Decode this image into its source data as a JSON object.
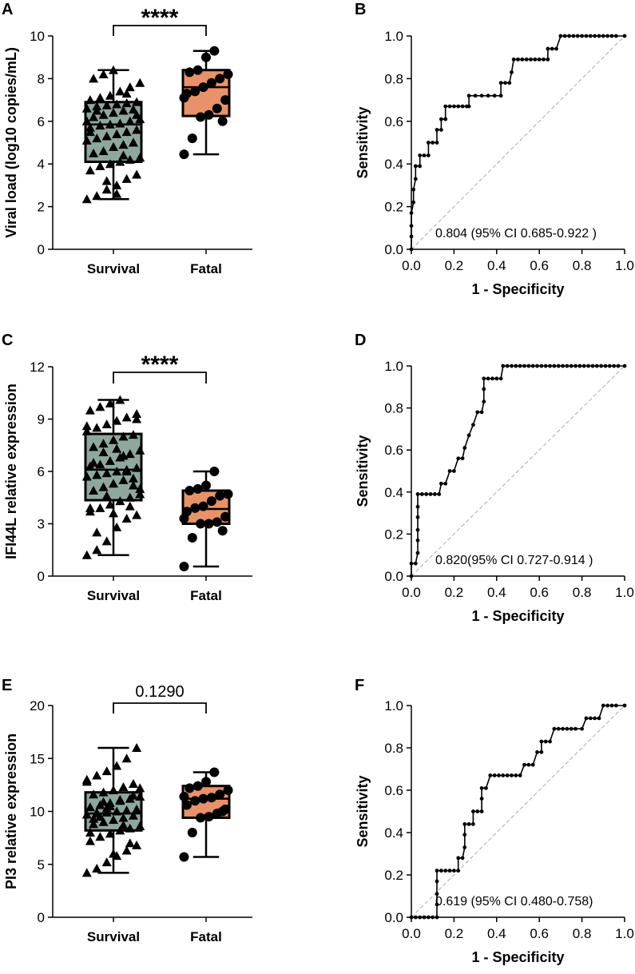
{
  "colors": {
    "survival_fill": "#8fa89e",
    "fatal_fill": "#e8926a",
    "line": "#000000",
    "diag": "#aaaaaa"
  },
  "chart_data": [
    {
      "panel": "A",
      "type": "box",
      "ylabel": "Viral load (log10 copies/mL)",
      "ylim": [
        0,
        10
      ],
      "yticks": [
        0,
        2,
        4,
        6,
        8,
        10
      ],
      "categories": [
        "Survival",
        "Fatal"
      ],
      "significance": "****",
      "boxes": [
        {
          "name": "Survival",
          "min": 2.35,
          "q1": 4.1,
          "median": 5.85,
          "q3": 6.9,
          "max": 8.4,
          "marker": "triangle"
        },
        {
          "name": "Fatal",
          "min": 4.45,
          "q1": 6.25,
          "median": 7.6,
          "q3": 8.4,
          "max": 9.3,
          "marker": "circle"
        }
      ],
      "points": [
        [
          2.35,
          2.5,
          2.8,
          3.0,
          3.3,
          3.5,
          3.7,
          3.9,
          4.0,
          4.1,
          4.2,
          4.3,
          4.5,
          4.6,
          4.8,
          4.9,
          5.0,
          5.1,
          5.2,
          5.3,
          5.4,
          5.5,
          5.6,
          5.7,
          5.8,
          5.85,
          5.9,
          6.0,
          6.1,
          6.2,
          6.3,
          6.4,
          6.5,
          6.55,
          6.6,
          6.7,
          6.75,
          6.8,
          6.85,
          6.9,
          7.0,
          7.1,
          7.2,
          7.4,
          7.6,
          7.8,
          8.0,
          8.2,
          8.4,
          4.4,
          5.0,
          6.0,
          6.5,
          3.2,
          2.6,
          7.3,
          6.3,
          5.5
        ],
        [
          4.45,
          5.2,
          6.2,
          6.3,
          6.6,
          7.0,
          7.3,
          7.4,
          7.6,
          7.8,
          8.0,
          8.2,
          8.3,
          8.4,
          9.0,
          9.3,
          6.0,
          7.1
        ]
      ]
    },
    {
      "panel": "B",
      "type": "roc",
      "xlabel": "1 - Specificity",
      "ylabel": "Sensitivity",
      "xticks": [
        0.0,
        0.2,
        0.4,
        0.6,
        0.8,
        1.0
      ],
      "yticks": [
        0.0,
        0.2,
        0.4,
        0.6,
        0.8,
        1.0
      ],
      "auc_label": "0.804  (95% CI 0.685-0.922 )",
      "curve": [
        [
          0,
          0
        ],
        [
          0,
          0.06
        ],
        [
          0,
          0.11
        ],
        [
          0,
          0.17
        ],
        [
          0.01,
          0.22
        ],
        [
          0.01,
          0.28
        ],
        [
          0.02,
          0.33
        ],
        [
          0.02,
          0.39
        ],
        [
          0.04,
          0.39
        ],
        [
          0.04,
          0.44
        ],
        [
          0.06,
          0.44
        ],
        [
          0.08,
          0.44
        ],
        [
          0.08,
          0.5
        ],
        [
          0.1,
          0.5
        ],
        [
          0.12,
          0.5
        ],
        [
          0.12,
          0.56
        ],
        [
          0.14,
          0.56
        ],
        [
          0.14,
          0.61
        ],
        [
          0.16,
          0.61
        ],
        [
          0.16,
          0.67
        ],
        [
          0.18,
          0.67
        ],
        [
          0.2,
          0.67
        ],
        [
          0.22,
          0.67
        ],
        [
          0.24,
          0.67
        ],
        [
          0.26,
          0.67
        ],
        [
          0.27,
          0.67
        ],
        [
          0.27,
          0.72
        ],
        [
          0.3,
          0.72
        ],
        [
          0.33,
          0.72
        ],
        [
          0.36,
          0.72
        ],
        [
          0.39,
          0.72
        ],
        [
          0.42,
          0.72
        ],
        [
          0.42,
          0.78
        ],
        [
          0.44,
          0.78
        ],
        [
          0.46,
          0.78
        ],
        [
          0.47,
          0.83
        ],
        [
          0.48,
          0.89
        ],
        [
          0.5,
          0.89
        ],
        [
          0.52,
          0.89
        ],
        [
          0.54,
          0.89
        ],
        [
          0.56,
          0.89
        ],
        [
          0.58,
          0.89
        ],
        [
          0.6,
          0.89
        ],
        [
          0.62,
          0.89
        ],
        [
          0.64,
          0.89
        ],
        [
          0.64,
          0.94
        ],
        [
          0.66,
          0.94
        ],
        [
          0.68,
          0.94
        ],
        [
          0.7,
          1.0
        ],
        [
          0.72,
          1.0
        ],
        [
          0.74,
          1.0
        ],
        [
          0.76,
          1.0
        ],
        [
          0.78,
          1.0
        ],
        [
          0.8,
          1.0
        ],
        [
          0.82,
          1.0
        ],
        [
          0.84,
          1.0
        ],
        [
          0.86,
          1.0
        ],
        [
          0.88,
          1.0
        ],
        [
          0.9,
          1.0
        ],
        [
          0.92,
          1.0
        ],
        [
          0.94,
          1.0
        ],
        [
          0.96,
          1.0
        ],
        [
          1.0,
          1.0
        ]
      ]
    },
    {
      "panel": "C",
      "type": "box",
      "ylabel": "IFI44L relative expression",
      "ylim": [
        0,
        12
      ],
      "yticks": [
        0,
        3,
        6,
        9,
        12
      ],
      "categories": [
        "Survival",
        "Fatal"
      ],
      "significance": "****",
      "boxes": [
        {
          "name": "Survival",
          "min": 1.2,
          "q1": 4.35,
          "median": 6.1,
          "q3": 8.15,
          "max": 10.1,
          "marker": "triangle"
        },
        {
          "name": "Fatal",
          "min": 0.55,
          "q1": 3.0,
          "median": 3.85,
          "q3": 4.9,
          "max": 6.0,
          "marker": "circle"
        }
      ],
      "points": [
        [
          1.2,
          1.5,
          2.0,
          2.8,
          3.3,
          3.5,
          3.7,
          3.9,
          4.1,
          4.3,
          4.5,
          4.7,
          4.9,
          5.1,
          5.3,
          5.5,
          5.6,
          5.7,
          5.8,
          5.9,
          6.0,
          6.1,
          6.2,
          6.3,
          6.4,
          6.6,
          6.8,
          7.0,
          7.2,
          7.4,
          7.6,
          7.8,
          8.0,
          8.1,
          8.3,
          8.5,
          8.7,
          8.9,
          9.1,
          9.3,
          9.5,
          9.7,
          9.9,
          10.1,
          4.0,
          5.0,
          6.5,
          7.1,
          3.6,
          6.9,
          5.2,
          8.6,
          2.5,
          4.6,
          7.3,
          6.0,
          9.0,
          3.9
        ],
        [
          0.55,
          2.2,
          3.0,
          3.0,
          3.1,
          3.4,
          3.7,
          3.9,
          4.0,
          4.3,
          4.6,
          4.7,
          4.9,
          5.0,
          5.2,
          6.0,
          2.6,
          3.3
        ]
      ]
    },
    {
      "panel": "D",
      "type": "roc",
      "xlabel": "1 - Specificity",
      "ylabel": "Sensitivity",
      "xticks": [
        0.0,
        0.2,
        0.4,
        0.6,
        0.8,
        1.0
      ],
      "yticks": [
        0.0,
        0.2,
        0.4,
        0.6,
        0.8,
        1.0
      ],
      "auc_label": "0.820(95% CI 0.727-0.914 )",
      "curve": [
        [
          0,
          0
        ],
        [
          0,
          0.06
        ],
        [
          0.02,
          0.06
        ],
        [
          0.03,
          0.11
        ],
        [
          0.03,
          0.17
        ],
        [
          0.03,
          0.22
        ],
        [
          0.03,
          0.28
        ],
        [
          0.03,
          0.33
        ],
        [
          0.03,
          0.39
        ],
        [
          0.05,
          0.39
        ],
        [
          0.07,
          0.39
        ],
        [
          0.09,
          0.39
        ],
        [
          0.11,
          0.39
        ],
        [
          0.13,
          0.39
        ],
        [
          0.14,
          0.44
        ],
        [
          0.16,
          0.44
        ],
        [
          0.18,
          0.5
        ],
        [
          0.2,
          0.5
        ],
        [
          0.22,
          0.56
        ],
        [
          0.24,
          0.56
        ],
        [
          0.25,
          0.61
        ],
        [
          0.27,
          0.67
        ],
        [
          0.29,
          0.72
        ],
        [
          0.31,
          0.78
        ],
        [
          0.33,
          0.78
        ],
        [
          0.34,
          0.83
        ],
        [
          0.34,
          0.89
        ],
        [
          0.34,
          0.94
        ],
        [
          0.36,
          0.94
        ],
        [
          0.38,
          0.94
        ],
        [
          0.4,
          0.94
        ],
        [
          0.42,
          0.94
        ],
        [
          0.43,
          1.0
        ],
        [
          0.45,
          1.0
        ],
        [
          0.47,
          1.0
        ],
        [
          0.49,
          1.0
        ],
        [
          0.51,
          1.0
        ],
        [
          0.53,
          1.0
        ],
        [
          0.55,
          1.0
        ],
        [
          0.57,
          1.0
        ],
        [
          0.59,
          1.0
        ],
        [
          0.61,
          1.0
        ],
        [
          0.63,
          1.0
        ],
        [
          0.65,
          1.0
        ],
        [
          0.67,
          1.0
        ],
        [
          0.69,
          1.0
        ],
        [
          0.71,
          1.0
        ],
        [
          0.73,
          1.0
        ],
        [
          0.75,
          1.0
        ],
        [
          0.77,
          1.0
        ],
        [
          0.79,
          1.0
        ],
        [
          0.81,
          1.0
        ],
        [
          0.83,
          1.0
        ],
        [
          0.85,
          1.0
        ],
        [
          0.87,
          1.0
        ],
        [
          0.89,
          1.0
        ],
        [
          0.91,
          1.0
        ],
        [
          0.93,
          1.0
        ],
        [
          0.95,
          1.0
        ],
        [
          0.97,
          1.0
        ],
        [
          1.0,
          1.0
        ]
      ]
    },
    {
      "panel": "E",
      "type": "box",
      "ylabel": "PI3 relative expression",
      "ylim": [
        0,
        20
      ],
      "yticks": [
        0,
        5,
        10,
        15,
        20
      ],
      "categories": [
        "Survival",
        "Fatal"
      ],
      "significance": "0.1290",
      "boxes": [
        {
          "name": "Survival",
          "min": 4.2,
          "q1": 8.2,
          "median": 9.8,
          "q3": 11.8,
          "max": 16.0,
          "marker": "triangle"
        },
        {
          "name": "Fatal",
          "min": 5.7,
          "q1": 9.4,
          "median": 11.2,
          "q3": 12.4,
          "max": 13.7,
          "marker": "circle"
        }
      ],
      "points": [
        [
          4.2,
          4.6,
          5.2,
          5.8,
          6.3,
          6.8,
          7.2,
          7.6,
          7.9,
          8.2,
          8.4,
          8.6,
          8.8,
          9.0,
          9.2,
          9.4,
          9.6,
          9.7,
          9.8,
          9.9,
          10.0,
          10.1,
          10.2,
          10.4,
          10.6,
          10.8,
          11.0,
          11.2,
          11.4,
          11.6,
          11.8,
          12.0,
          12.3,
          12.6,
          13.0,
          13.4,
          13.8,
          14.3,
          15.0,
          16.0,
          8.0,
          9.5,
          10.5,
          11.1,
          7.0,
          12.2,
          9.3,
          10.9,
          6.0,
          8.7,
          11.5,
          12.8,
          9.9,
          10.3
        ],
        [
          5.7,
          8.0,
          9.4,
          9.5,
          9.8,
          10.2,
          10.6,
          11.0,
          11.2,
          11.3,
          11.6,
          12.0,
          12.2,
          12.4,
          12.8,
          13.7,
          10.0,
          11.4
        ]
      ]
    },
    {
      "panel": "F",
      "type": "roc",
      "xlabel": "1 - Specificity",
      "ylabel": "Sensitivity",
      "xticks": [
        0.0,
        0.2,
        0.4,
        0.6,
        0.8,
        1.0
      ],
      "yticks": [
        0.0,
        0.2,
        0.4,
        0.6,
        0.8,
        1.0
      ],
      "auc_label": "0.619 (95% CI 0.480-0.758)",
      "curve": [
        [
          0,
          0
        ],
        [
          0.02,
          0
        ],
        [
          0.04,
          0
        ],
        [
          0.06,
          0
        ],
        [
          0.08,
          0
        ],
        [
          0.1,
          0
        ],
        [
          0.12,
          0
        ],
        [
          0.12,
          0.06
        ],
        [
          0.12,
          0.11
        ],
        [
          0.12,
          0.17
        ],
        [
          0.12,
          0.22
        ],
        [
          0.14,
          0.22
        ],
        [
          0.16,
          0.22
        ],
        [
          0.18,
          0.22
        ],
        [
          0.2,
          0.22
        ],
        [
          0.22,
          0.22
        ],
        [
          0.22,
          0.28
        ],
        [
          0.24,
          0.28
        ],
        [
          0.25,
          0.33
        ],
        [
          0.25,
          0.39
        ],
        [
          0.25,
          0.44
        ],
        [
          0.27,
          0.44
        ],
        [
          0.29,
          0.44
        ],
        [
          0.29,
          0.5
        ],
        [
          0.31,
          0.5
        ],
        [
          0.33,
          0.5
        ],
        [
          0.33,
          0.56
        ],
        [
          0.33,
          0.61
        ],
        [
          0.35,
          0.61
        ],
        [
          0.37,
          0.67
        ],
        [
          0.39,
          0.67
        ],
        [
          0.41,
          0.67
        ],
        [
          0.43,
          0.67
        ],
        [
          0.45,
          0.67
        ],
        [
          0.47,
          0.67
        ],
        [
          0.49,
          0.67
        ],
        [
          0.51,
          0.67
        ],
        [
          0.53,
          0.72
        ],
        [
          0.55,
          0.72
        ],
        [
          0.57,
          0.72
        ],
        [
          0.59,
          0.78
        ],
        [
          0.61,
          0.78
        ],
        [
          0.61,
          0.83
        ],
        [
          0.63,
          0.83
        ],
        [
          0.65,
          0.83
        ],
        [
          0.67,
          0.89
        ],
        [
          0.69,
          0.89
        ],
        [
          0.71,
          0.89
        ],
        [
          0.73,
          0.89
        ],
        [
          0.75,
          0.89
        ],
        [
          0.77,
          0.89
        ],
        [
          0.8,
          0.89
        ],
        [
          0.82,
          0.94
        ],
        [
          0.84,
          0.94
        ],
        [
          0.86,
          0.94
        ],
        [
          0.88,
          0.94
        ],
        [
          0.9,
          1.0
        ],
        [
          0.92,
          1.0
        ],
        [
          0.94,
          1.0
        ],
        [
          0.96,
          1.0
        ],
        [
          1.0,
          1.0
        ]
      ]
    }
  ]
}
